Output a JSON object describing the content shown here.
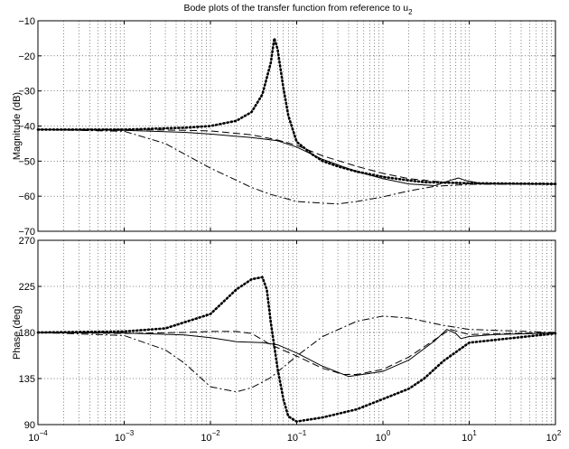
{
  "title": "Bode plots of the transfer function from reference to u",
  "title_subscript": "2",
  "chart_data": [
    {
      "type": "line",
      "panel": "magnitude",
      "xscale": "log",
      "xlim": [
        0.0001,
        100
      ],
      "ylim": [
        -70,
        -10
      ],
      "yticks": [
        -70,
        -60,
        -50,
        -40,
        -30,
        -20,
        -10
      ],
      "ytick_labels": [
        "−70",
        "−60",
        "−50",
        "−40",
        "−30",
        "−20",
        "−10"
      ],
      "ylabel": "Magnitude (dB)",
      "grid": true,
      "series": [
        {
          "style": "solid",
          "x": [
            0.0001,
            0.001,
            0.005,
            0.01,
            0.03,
            0.06,
            0.1,
            0.2,
            0.5,
            1,
            2,
            4,
            6,
            7.5,
            9,
            15,
            100
          ],
          "y": [
            -41,
            -41.2,
            -41.8,
            -42.3,
            -43.3,
            -44.2,
            -46,
            -49.5,
            -53,
            -55,
            -56.5,
            -57,
            -55.5,
            -54.8,
            -55.5,
            -56.5,
            -56.5
          ]
        },
        {
          "style": "dashed",
          "x": [
            0.0001,
            0.001,
            0.005,
            0.01,
            0.03,
            0.06,
            0.1,
            0.2,
            0.5,
            1,
            2,
            5,
            10,
            100
          ],
          "y": [
            -41,
            -41,
            -41.2,
            -41.4,
            -42.5,
            -44,
            -45.5,
            -48.5,
            -51.5,
            -53.5,
            -55,
            -56,
            -56.4,
            -56.5
          ]
        },
        {
          "style": "dotted",
          "x": [
            0.0001,
            0.001,
            0.005,
            0.01,
            0.02,
            0.03,
            0.04,
            0.05,
            0.055,
            0.06,
            0.07,
            0.08,
            0.1,
            0.15,
            0.2,
            0.3,
            0.5,
            1,
            2,
            3,
            10,
            100
          ],
          "y": [
            -41,
            -41,
            -40.5,
            -40,
            -38.5,
            -36,
            -31,
            -22,
            -15,
            -18,
            -29,
            -37,
            -44.5,
            -48,
            -50,
            -51.5,
            -53,
            -54.5,
            -55.5,
            -56,
            -56.3,
            -56.5
          ]
        },
        {
          "style": "dashdot",
          "x": [
            0.0001,
            0.001,
            0.003,
            0.005,
            0.01,
            0.03,
            0.05,
            0.1,
            0.2,
            0.3,
            0.5,
            1,
            2,
            4,
            10,
            100
          ],
          "y": [
            -41,
            -41.5,
            -45,
            -48,
            -52,
            -57.5,
            -59.5,
            -61.5,
            -62,
            -62.2,
            -61.5,
            -60.2,
            -58.5,
            -57.2,
            -56.6,
            -56.5
          ]
        }
      ]
    },
    {
      "type": "line",
      "panel": "phase",
      "xscale": "log",
      "xlim": [
        0.0001,
        100
      ],
      "ylim": [
        90,
        270
      ],
      "yticks": [
        90,
        135,
        180,
        225,
        270
      ],
      "ytick_labels": [
        "90",
        "135",
        "180",
        "225",
        "270"
      ],
      "xticks": [
        0.0001,
        0.001,
        0.01,
        0.1,
        1,
        10,
        100
      ],
      "xtick_bases": [
        "10",
        "10",
        "10",
        "10",
        "10",
        "10",
        "10"
      ],
      "xtick_exponents": [
        "−4",
        "−3",
        "−2",
        "−1",
        "0",
        "1",
        "2"
      ],
      "ylabel": "Phase (deg)",
      "grid": true,
      "series": [
        {
          "style": "solid",
          "x": [
            0.0001,
            0.001,
            0.005,
            0.01,
            0.02,
            0.04,
            0.06,
            0.1,
            0.2,
            0.4,
            1,
            2,
            4,
            5.5,
            7,
            8,
            10,
            20,
            100
          ],
          "y": [
            180,
            179.5,
            177.5,
            175,
            171,
            170,
            168,
            160,
            147,
            137,
            142,
            153,
            172,
            183,
            179,
            174,
            176,
            178,
            179.5
          ]
        },
        {
          "style": "dashed",
          "x": [
            0.0001,
            0.001,
            0.005,
            0.01,
            0.02,
            0.03,
            0.05,
            0.1,
            0.2,
            0.35,
            0.5,
            1,
            2,
            4,
            6,
            10,
            100
          ],
          "y": [
            180,
            179,
            180,
            181,
            181,
            179,
            168,
            157,
            145,
            139,
            139,
            144,
            156,
            173,
            183,
            178,
            180
          ]
        },
        {
          "style": "dotted",
          "x": [
            0.0001,
            0.001,
            0.003,
            0.01,
            0.02,
            0.03,
            0.04,
            0.045,
            0.05,
            0.06,
            0.07,
            0.08,
            0.1,
            0.2,
            0.5,
            1,
            2,
            3,
            5,
            10,
            100
          ],
          "y": [
            180,
            181,
            184,
            198,
            222,
            232,
            234,
            222,
            190,
            145,
            115,
            98,
            93,
            97,
            105,
            115,
            125,
            135,
            152,
            170,
            179
          ]
        },
        {
          "style": "dashdot",
          "x": [
            0.0001,
            0.001,
            0.003,
            0.005,
            0.01,
            0.02,
            0.03,
            0.05,
            0.1,
            0.2,
            0.5,
            1,
            2,
            5,
            10,
            100
          ],
          "y": [
            180,
            177,
            163,
            150,
            127,
            122,
            126,
            136,
            157,
            176,
            191,
            196,
            194,
            187,
            183,
            180
          ]
        }
      ]
    }
  ]
}
